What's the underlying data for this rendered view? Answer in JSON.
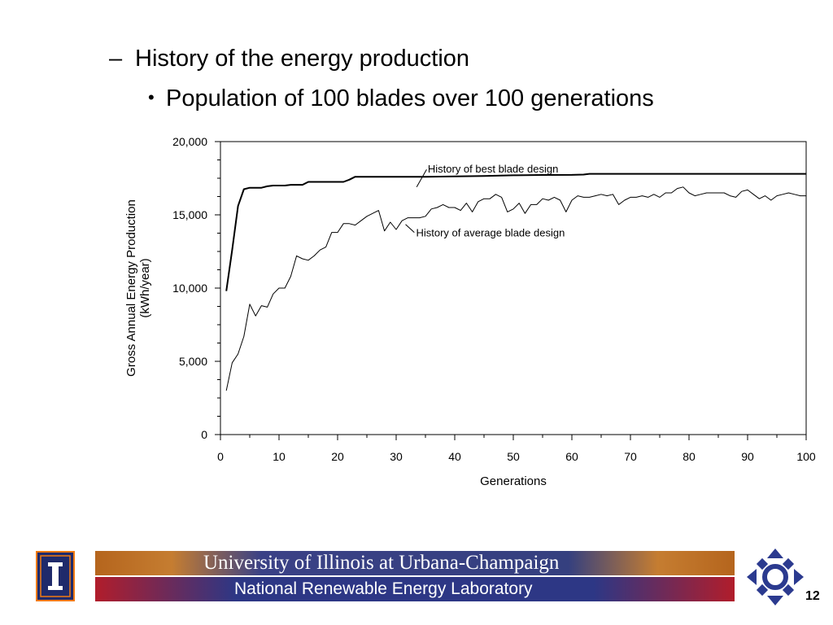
{
  "slide": {
    "bullet_dash": "–",
    "heading": "History of the energy production",
    "bullet_dot": "•",
    "subheading": "Population of 100 blades over 100 generations",
    "page_number": "12"
  },
  "footer": {
    "university": "University of Illinois at Urbana-Champaign",
    "lab": "National Renewable Energy Laboratory"
  },
  "colors": {
    "banner_blue": "#35407f",
    "banner_orange": "#c57d31",
    "banner_red": "#b11d2b",
    "logo_blue": "#1f2a6b"
  },
  "icons": [
    "illinois-block-i-logo",
    "nrel-cross-logo"
  ],
  "chart_data": {
    "type": "line",
    "title": "",
    "xlabel": "Generations",
    "ylabel": "Gross Annual Energy Production (kWh/year)",
    "ylabel_lines": [
      "Gross Annual Energy Production",
      "(kWh/year)"
    ],
    "xlim": [
      0,
      100
    ],
    "ylim": [
      0,
      20000
    ],
    "xticks": [
      0,
      10,
      20,
      30,
      40,
      50,
      60,
      70,
      80,
      90,
      100
    ],
    "xtick_labels": [
      "0",
      "10",
      "20",
      "30",
      "40",
      "50",
      "60",
      "70",
      "80",
      "90",
      "100"
    ],
    "yticks": [
      0,
      5000,
      10000,
      15000,
      20000
    ],
    "ytick_labels": [
      "0",
      "5,000",
      "10,000",
      "15,000",
      "20,000"
    ],
    "grid": false,
    "legend": "none",
    "annotations": [
      {
        "text": "History of best blade design",
        "series": 0
      },
      {
        "text": "History of average blade design",
        "series": 1
      }
    ],
    "series": [
      {
        "values": [
          [
            1,
            9800
          ],
          [
            2,
            12600
          ],
          [
            3,
            15600
          ],
          [
            4,
            16750
          ],
          [
            5,
            16850
          ],
          [
            6,
            16850
          ],
          [
            7,
            16850
          ],
          [
            8,
            16950
          ],
          [
            9,
            17000
          ],
          [
            10,
            17000
          ],
          [
            11,
            17000
          ],
          [
            12,
            17050
          ],
          [
            13,
            17050
          ],
          [
            14,
            17050
          ],
          [
            15,
            17250
          ],
          [
            16,
            17250
          ],
          [
            17,
            17250
          ],
          [
            18,
            17250
          ],
          [
            19,
            17250
          ],
          [
            20,
            17250
          ],
          [
            21,
            17250
          ],
          [
            22,
            17400
          ],
          [
            23,
            17600
          ],
          [
            25,
            17600
          ],
          [
            30,
            17600
          ],
          [
            35,
            17600
          ],
          [
            40,
            17620
          ],
          [
            45,
            17650
          ],
          [
            50,
            17700
          ],
          [
            55,
            17720
          ],
          [
            60,
            17730
          ],
          [
            62,
            17750
          ],
          [
            63,
            17800
          ],
          [
            70,
            17800
          ],
          [
            80,
            17800
          ],
          [
            90,
            17800
          ],
          [
            100,
            17800
          ]
        ]
      },
      {
        "values": [
          [
            1,
            3000
          ],
          [
            2,
            4900
          ],
          [
            3,
            5500
          ],
          [
            4,
            6700
          ],
          [
            5,
            8900
          ],
          [
            6,
            8100
          ],
          [
            7,
            8800
          ],
          [
            8,
            8700
          ],
          [
            9,
            9600
          ],
          [
            10,
            10000
          ],
          [
            11,
            10000
          ],
          [
            12,
            10800
          ],
          [
            13,
            12200
          ],
          [
            14,
            12000
          ],
          [
            15,
            11900
          ],
          [
            16,
            12200
          ],
          [
            17,
            12600
          ],
          [
            18,
            12800
          ],
          [
            19,
            13800
          ],
          [
            20,
            13800
          ],
          [
            21,
            14400
          ],
          [
            22,
            14400
          ],
          [
            23,
            14300
          ],
          [
            24,
            14600
          ],
          [
            25,
            14900
          ],
          [
            26,
            15100
          ],
          [
            27,
            15300
          ],
          [
            28,
            13900
          ],
          [
            29,
            14500
          ],
          [
            30,
            14000
          ],
          [
            31,
            14600
          ],
          [
            32,
            14800
          ],
          [
            33,
            14800
          ],
          [
            34,
            14800
          ],
          [
            35,
            14900
          ],
          [
            36,
            15400
          ],
          [
            37,
            15500
          ],
          [
            38,
            15700
          ],
          [
            39,
            15500
          ],
          [
            40,
            15500
          ],
          [
            41,
            15300
          ],
          [
            42,
            15800
          ],
          [
            43,
            15200
          ],
          [
            44,
            15900
          ],
          [
            45,
            16100
          ],
          [
            46,
            16100
          ],
          [
            47,
            16400
          ],
          [
            48,
            16200
          ],
          [
            49,
            15200
          ],
          [
            50,
            15400
          ],
          [
            51,
            15800
          ],
          [
            52,
            15100
          ],
          [
            53,
            15700
          ],
          [
            54,
            15700
          ],
          [
            55,
            16100
          ],
          [
            56,
            16000
          ],
          [
            57,
            16200
          ],
          [
            58,
            16000
          ],
          [
            59,
            15200
          ],
          [
            60,
            16000
          ],
          [
            61,
            16300
          ],
          [
            62,
            16200
          ],
          [
            63,
            16200
          ],
          [
            64,
            16300
          ],
          [
            65,
            16400
          ],
          [
            66,
            16300
          ],
          [
            67,
            16400
          ],
          [
            68,
            15700
          ],
          [
            69,
            16000
          ],
          [
            70,
            16200
          ],
          [
            71,
            16200
          ],
          [
            72,
            16300
          ],
          [
            73,
            16200
          ],
          [
            74,
            16400
          ],
          [
            75,
            16200
          ],
          [
            76,
            16500
          ],
          [
            77,
            16500
          ],
          [
            78,
            16800
          ],
          [
            79,
            16900
          ],
          [
            80,
            16500
          ],
          [
            81,
            16300
          ],
          [
            82,
            16400
          ],
          [
            83,
            16500
          ],
          [
            84,
            16500
          ],
          [
            85,
            16500
          ],
          [
            86,
            16500
          ],
          [
            87,
            16300
          ],
          [
            88,
            16200
          ],
          [
            89,
            16600
          ],
          [
            90,
            16700
          ],
          [
            91,
            16400
          ],
          [
            92,
            16100
          ],
          [
            93,
            16300
          ],
          [
            94,
            16000
          ],
          [
            95,
            16300
          ],
          [
            96,
            16400
          ],
          [
            97,
            16500
          ],
          [
            98,
            16400
          ],
          [
            99,
            16300
          ],
          [
            100,
            16300
          ]
        ]
      }
    ]
  }
}
